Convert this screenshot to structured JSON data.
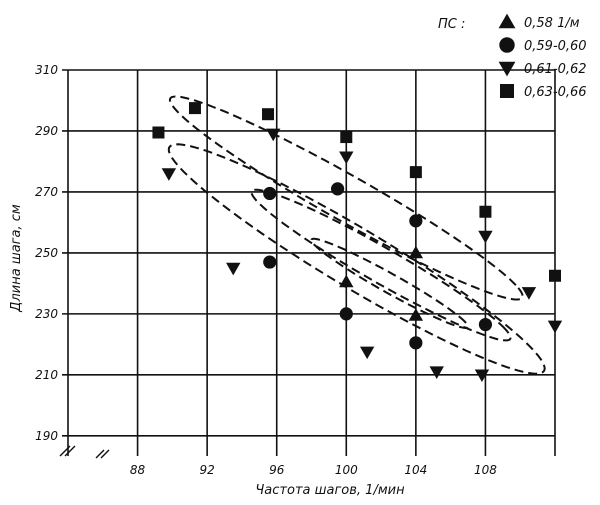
{
  "chart_data": {
    "type": "scatter",
    "title": "",
    "xlabel": "Частота шагов, 1/мин",
    "ylabel": "Длина шага, см",
    "xlim": [
      84,
      112
    ],
    "ylim": [
      186,
      310
    ],
    "xticks": [
      88,
      92,
      96,
      100,
      104,
      108
    ],
    "yticks": [
      190,
      210,
      230,
      250,
      270,
      290,
      310
    ],
    "grid": true,
    "axis_break": "bottom-left",
    "legend": {
      "title": "ПС :",
      "placement": "top-right"
    },
    "series": [
      {
        "name": "0,58 1/м",
        "marker": "triangle-up",
        "points": [
          [
            100.0,
            240.5
          ],
          [
            104.0,
            250.0
          ],
          [
            104.0,
            229.5
          ]
        ],
        "contour": {
          "cx": 102.5,
          "cy": 240,
          "rx": 5.8,
          "ry": 13
        }
      },
      {
        "name": "0,59-0,60",
        "marker": "circle",
        "points": [
          [
            95.6,
            269.5
          ],
          [
            99.5,
            271.0
          ],
          [
            104.0,
            260.5
          ],
          [
            95.6,
            247.0
          ],
          [
            100.0,
            230.0
          ],
          [
            104.0,
            220.5
          ],
          [
            108.0,
            226.5
          ]
        ],
        "contour": {
          "cx": 102,
          "cy": 246,
          "rx": 9.5,
          "ry": 24
        }
      },
      {
        "name": "0,61-0,62",
        "marker": "triangle-down",
        "points": [
          [
            95.8,
            289.0
          ],
          [
            100.0,
            281.5
          ],
          [
            89.8,
            276.0
          ],
          [
            108.0,
            255.5
          ],
          [
            93.5,
            245.0
          ],
          [
            110.5,
            237.0
          ],
          [
            112.0,
            226.0
          ],
          [
            101.2,
            217.5
          ],
          [
            105.2,
            211.0
          ],
          [
            107.8,
            210.0
          ]
        ],
        "contour": {
          "cx": 100.6,
          "cy": 248,
          "rx": 13.5,
          "ry": 42
        }
      },
      {
        "name": "0,63-0,66",
        "marker": "square",
        "points": [
          [
            89.2,
            289.5
          ],
          [
            91.3,
            297.5
          ],
          [
            95.5,
            295.5
          ],
          [
            100.0,
            288.0
          ],
          [
            104.0,
            276.5
          ],
          [
            108.0,
            263.5
          ],
          [
            112.0,
            242.5
          ]
        ],
        "contour": {
          "cx": 100,
          "cy": 268,
          "rx": 13,
          "ry": 31
        }
      }
    ]
  }
}
